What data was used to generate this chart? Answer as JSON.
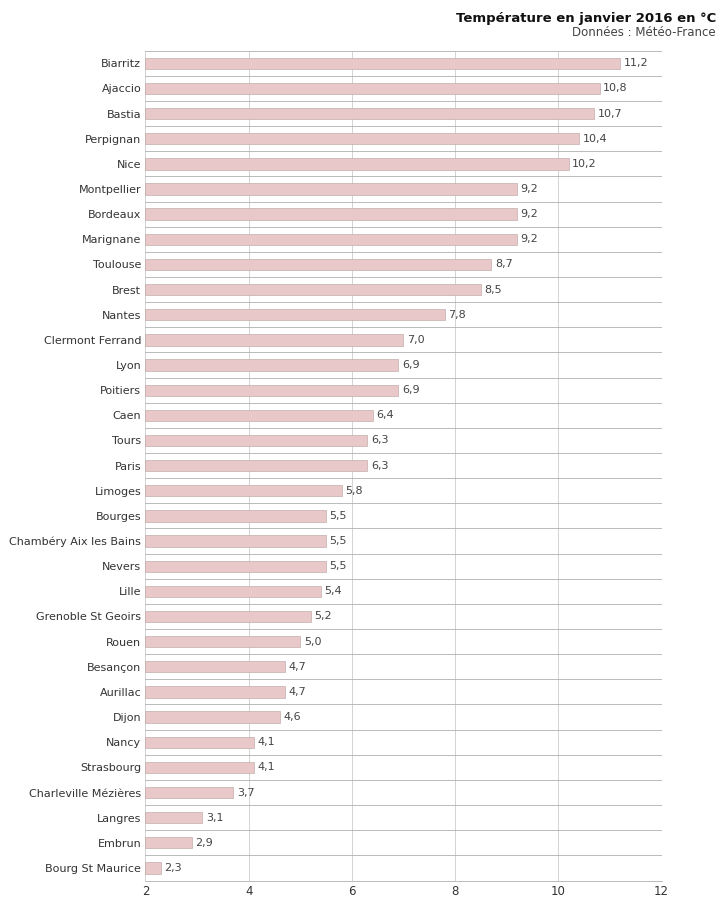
{
  "title": "Température en janvier 2016 en °C",
  "subtitle": "Données : Météo-France",
  "cities": [
    "Biarritz",
    "Ajaccio",
    "Bastia",
    "Perpignan",
    "Nice",
    "Montpellier",
    "Bordeaux",
    "Marignane",
    "Toulouse",
    "Brest",
    "Nantes",
    "Clermont Ferrand",
    "Lyon",
    "Poitiers",
    "Caen",
    "Tours",
    "Paris",
    "Limoges",
    "Bourges",
    "Chambéry Aix les Bains",
    "Nevers",
    "Lille",
    "Grenoble St Geoirs",
    "Rouen",
    "Besançon",
    "Aurillac",
    "Dijon",
    "Nancy",
    "Strasbourg",
    "Charleville Mézières",
    "Langres",
    "Embrun",
    "Bourg St Maurice"
  ],
  "values": [
    11.2,
    10.8,
    10.7,
    10.4,
    10.2,
    9.2,
    9.2,
    9.2,
    8.7,
    8.5,
    7.8,
    7.0,
    6.9,
    6.9,
    6.4,
    6.3,
    6.3,
    5.8,
    5.5,
    5.5,
    5.5,
    5.4,
    5.2,
    5.0,
    4.7,
    4.7,
    4.6,
    4.1,
    4.1,
    3.7,
    3.1,
    2.9,
    2.3
  ],
  "bar_color": "#e8c8c8",
  "bar_edge_color": "#b8a0a0",
  "text_color": "#333333",
  "title_color": "#111111",
  "subtitle_color": "#444444",
  "value_color": "#444444",
  "sep_line_color": "#b0b0b0",
  "vert_grid_color": "#cccccc",
  "bg_color": "#ffffff",
  "xlim": [
    2,
    12
  ],
  "xticks": [
    2,
    4,
    6,
    8,
    10,
    12
  ],
  "bar_height": 0.45,
  "title_fontsize": 9.5,
  "subtitle_fontsize": 8.5,
  "label_fontsize": 8.0,
  "value_fontsize": 8.0,
  "tick_fontsize": 8.5
}
